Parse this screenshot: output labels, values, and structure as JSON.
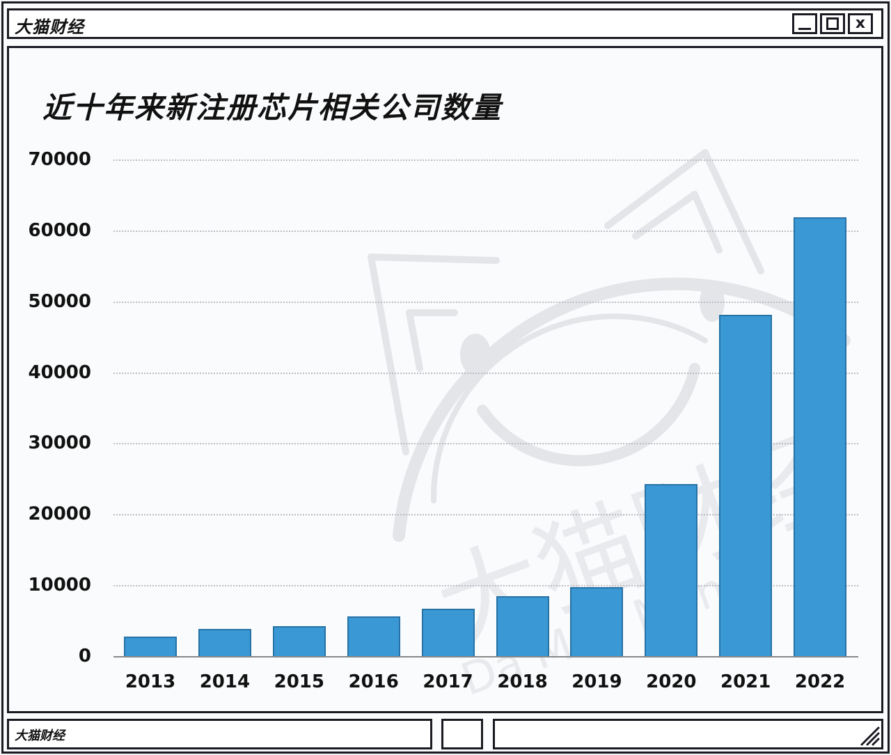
{
  "window": {
    "title": "大猫财经",
    "controls": {
      "minimize": "minimize",
      "maximize": "maximize",
      "close": "x"
    }
  },
  "statusbar": {
    "left_text": "大猫财经",
    "middle_text": "",
    "right_text": ""
  },
  "watermark": {
    "text_cn": "大猫财经",
    "text_en": "Da Mao Money"
  },
  "colors": {
    "bar": "#3a98d4",
    "bar_border": "#2672a6",
    "grid": "#b9bcc4",
    "frame": "#1a1a22"
  },
  "chart_data": {
    "type": "bar",
    "title": "近十年来新注册芯片相关公司数量",
    "xlabel": "",
    "ylabel": "",
    "categories": [
      "2013",
      "2014",
      "2015",
      "2016",
      "2017",
      "2018",
      "2019",
      "2020",
      "2021",
      "2022"
    ],
    "values": [
      2750,
      3830,
      4220,
      5600,
      6680,
      8440,
      9720,
      24250,
      48100,
      61850
    ],
    "ylim": [
      0,
      70000
    ],
    "yticks": [
      0,
      10000,
      20000,
      30000,
      40000,
      50000,
      60000,
      70000
    ],
    "ytick_labels": [
      "0",
      "10000",
      "20000",
      "30000",
      "40000",
      "50000",
      "60000",
      "70000"
    ],
    "grid": true,
    "grid_style": "dotted horizontal",
    "legend": null
  }
}
